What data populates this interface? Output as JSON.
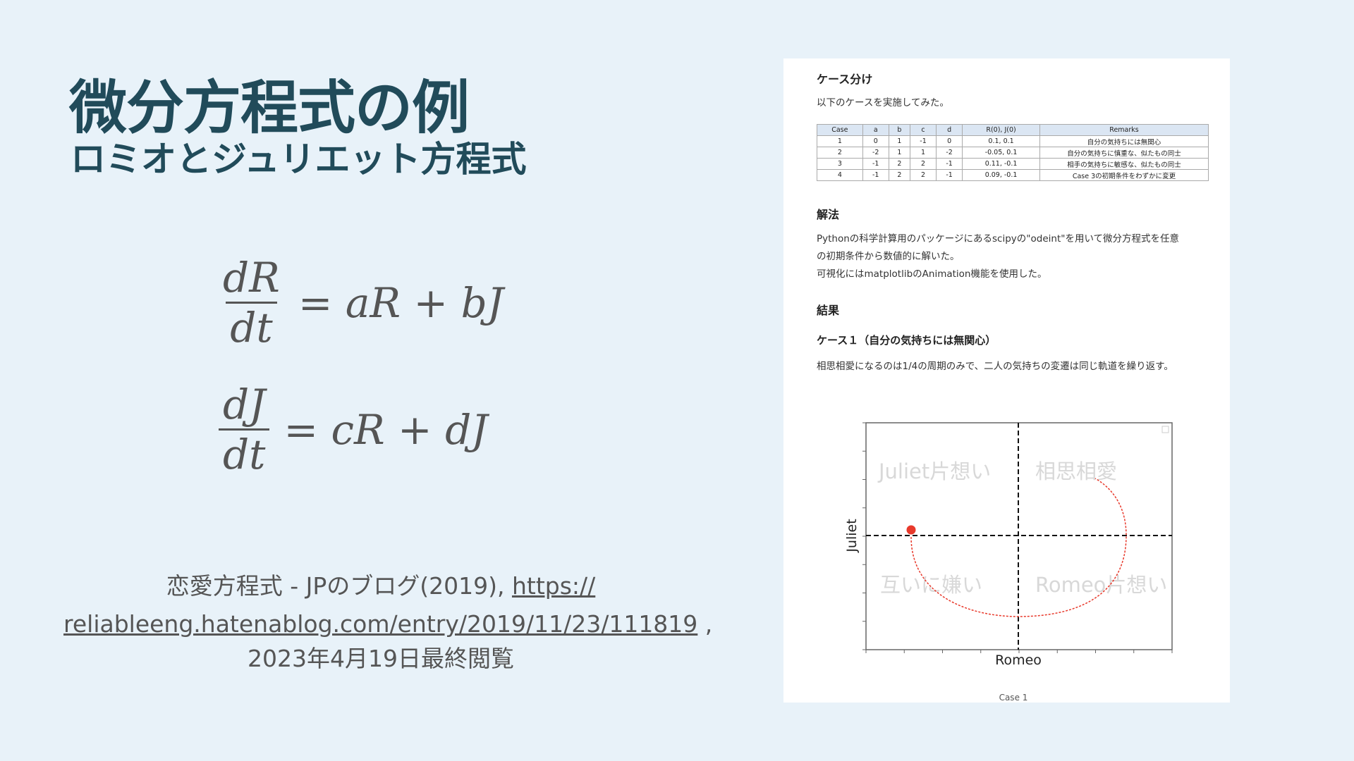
{
  "slide": {
    "title": "微分方程式の例",
    "subtitle": "ロミオとジュリエット方程式",
    "equations": [
      {
        "num": "dR",
        "den": "dt",
        "rhs": "= aR + bJ"
      },
      {
        "num": "dJ",
        "den": "dt",
        "rhs": "= cR + dJ"
      }
    ],
    "citation": {
      "prefix": "恋愛方程式 - JPのブログ(2019), ",
      "link_part1": "https://",
      "link_part2": "reliableeng.hatenablog.com/entry/2019/11/23/111819",
      "sep": " ,",
      "accessed": "2023年4月19日最終閲覧"
    },
    "colors": {
      "background": "#e8f2f9",
      "title": "#214b5a",
      "trajectory": "#e8392b"
    }
  },
  "article": {
    "section1_heading": "ケース分け",
    "section1_text": "以下のケースを実施してみた。",
    "table": {
      "headers": [
        "Case",
        "a",
        "b",
        "c",
        "d",
        "R(0), J(0)",
        "Remarks"
      ],
      "rows": [
        [
          "1",
          "0",
          "1",
          "-1",
          "0",
          "0.1, 0.1",
          "自分の気持ちには無関心"
        ],
        [
          "2",
          "-2",
          "1",
          "1",
          "-2",
          "-0.05, 0.1",
          "自分の気持ちに慎重な、似たもの同士"
        ],
        [
          "3",
          "-1",
          "2",
          "2",
          "-1",
          "0.11, -0.1",
          "相手の気持ちに敏感な、似たもの同士"
        ],
        [
          "4",
          "-1",
          "2",
          "2",
          "-1",
          "0.09, -0.1",
          "Case 3の初期条件をわずかに変更"
        ]
      ]
    },
    "section2_heading": "解法",
    "section2_lines": [
      "Pythonの科学計算用のパッケージにあるscipyの\"odeint\"を用いて微分方程式を任意",
      "の初期条件から数値的に解いた。",
      "可視化にはmatplotlibのAnimation機能を使用した。"
    ],
    "section3_heading": "結果",
    "case1_heading": "ケース１（自分の気持ちには無関心）",
    "case1_text": "相思相愛になるのは1/4の周期のみで、二人の気持ちの変遷は同じ軌道を繰り返す。",
    "plot": {
      "xlabel": "Romeo",
      "ylabel": "Juliet",
      "quadrants": {
        "top_left": "Juliet片想い",
        "top_right": "相思相愛",
        "bottom_left": "互いに嫌い",
        "bottom_right": "Romeo片想い"
      },
      "caption": "Case 1"
    }
  }
}
